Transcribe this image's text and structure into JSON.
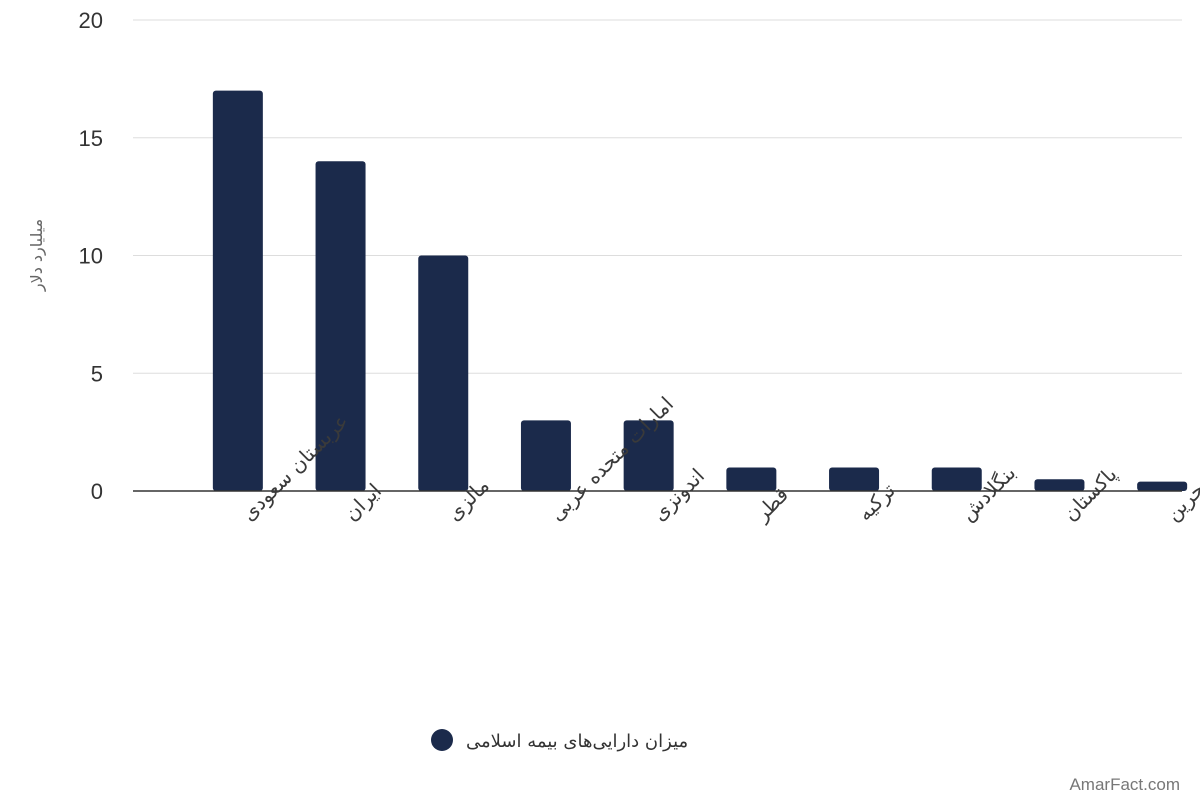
{
  "colors": {
    "bar": "#1b2a4b",
    "grid": "#dddddd",
    "axis": "#333333"
  },
  "chart_data": {
    "type": "bar",
    "categories": [
      "عربستان سعودی",
      "ایران",
      "مالزی",
      "امارات متحده عربی",
      "اندونزی",
      "قطر",
      "ترکیه",
      "بنگلادش",
      "پاکستان",
      "بحرین"
    ],
    "series": [
      {
        "name": "میزان دارایی‌های بیمه اسلامی",
        "values": [
          17,
          14,
          10,
          3,
          3,
          1,
          1,
          1,
          0.5,
          0.4
        ]
      }
    ],
    "ylabel": "میلیارد دلار",
    "ylim": [
      0,
      20
    ],
    "yticks": [
      "0",
      "5",
      "10",
      "15",
      "20"
    ],
    "grid": true,
    "legend": "bottom"
  },
  "watermark": "AmarFact.com"
}
